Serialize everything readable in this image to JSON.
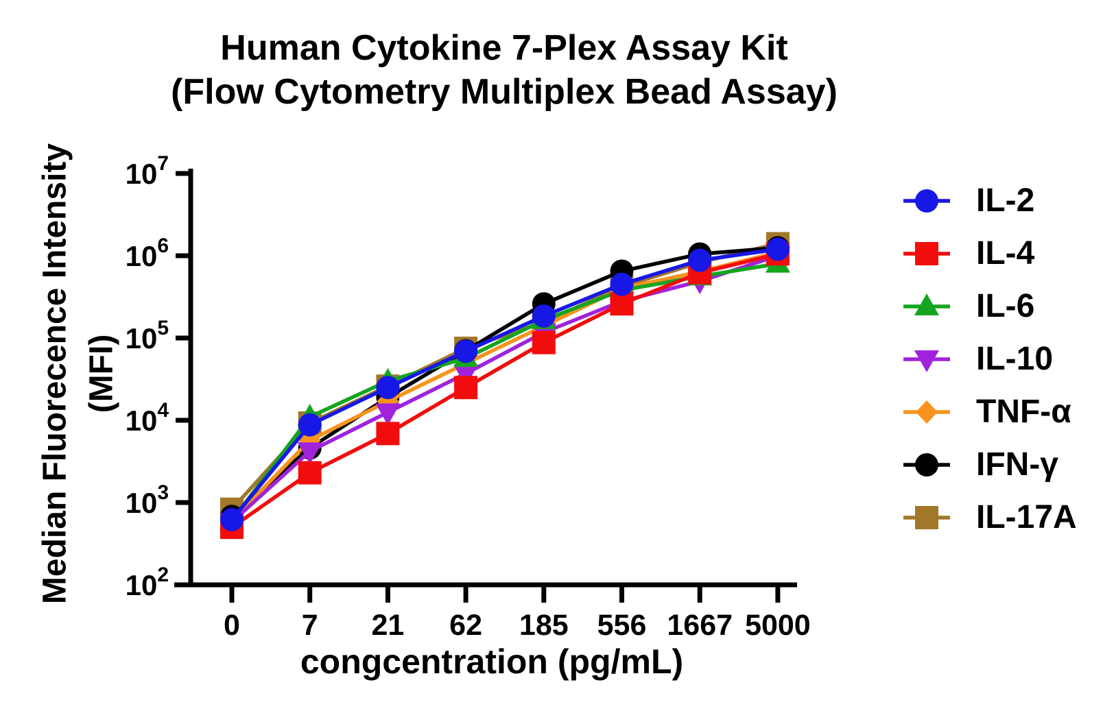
{
  "title": {
    "line1": "Human Cytokine 7-Plex Assay Kit",
    "line2": "(Flow Cytometry Multiplex Bead Assay)"
  },
  "y_axis": {
    "title_line1": "Median Fluorecence Intensity",
    "title_line2": "(MFI)",
    "tick_base": "10",
    "tick_exponents": [
      "2",
      "3",
      "4",
      "5",
      "6",
      "7"
    ]
  },
  "x_axis": {
    "title": "congcentration (pg/mL)",
    "tick_labels": [
      "0",
      "7",
      "21",
      "62",
      "185",
      "556",
      "1667",
      "5000"
    ]
  },
  "chart_data": {
    "type": "line",
    "title": "Human Cytokine 7-Plex Assay Kit (Flow Cytometry Multiplex Bead Assay)",
    "xlabel": "congcentration (pg/mL)",
    "ylabel": "Median Fluorecence Intensity (MFI)",
    "x_scale": "categorical-equal-spacing",
    "y_scale": "log10",
    "ylim": [
      100,
      10000000
    ],
    "grid": false,
    "legend_position": "right",
    "categories": [
      0,
      7,
      21,
      62,
      185,
      556,
      1667,
      5000
    ],
    "series": [
      {
        "name": "IL-2",
        "color": "#1818e6",
        "marker": "circle",
        "values": [
          620,
          8800,
          25000,
          69000,
          185000,
          450000,
          880000,
          1200000
        ]
      },
      {
        "name": "IL-4",
        "color": "#f20d0d",
        "marker": "square",
        "values": [
          500,
          2300,
          6900,
          25000,
          88000,
          260000,
          620000,
          1050000
        ]
      },
      {
        "name": "IL-6",
        "color": "#15a51f",
        "marker": "triangle-up",
        "values": [
          600,
          11000,
          30000,
          57000,
          165000,
          380000,
          560000,
          800000
        ]
      },
      {
        "name": "IL-10",
        "color": "#a023db",
        "marker": "triangle-down",
        "values": [
          580,
          4200,
          12500,
          37000,
          117000,
          280000,
          490000,
          1000000
        ]
      },
      {
        "name": "TNF-α",
        "color": "#f8931d",
        "marker": "diamond",
        "values": [
          600,
          5700,
          17000,
          49000,
          140000,
          400000,
          640000,
          1100000
        ]
      },
      {
        "name": "IFN-γ",
        "color": "#000000",
        "marker": "circle",
        "values": [
          680,
          4600,
          19000,
          70000,
          260000,
          650000,
          1050000,
          1250000
        ]
      },
      {
        "name": "IL-17A",
        "color": "#a3772a",
        "marker": "square",
        "values": [
          830,
          9250,
          26000,
          75000,
          155000,
          420000,
          830000,
          1400000
        ]
      }
    ]
  }
}
